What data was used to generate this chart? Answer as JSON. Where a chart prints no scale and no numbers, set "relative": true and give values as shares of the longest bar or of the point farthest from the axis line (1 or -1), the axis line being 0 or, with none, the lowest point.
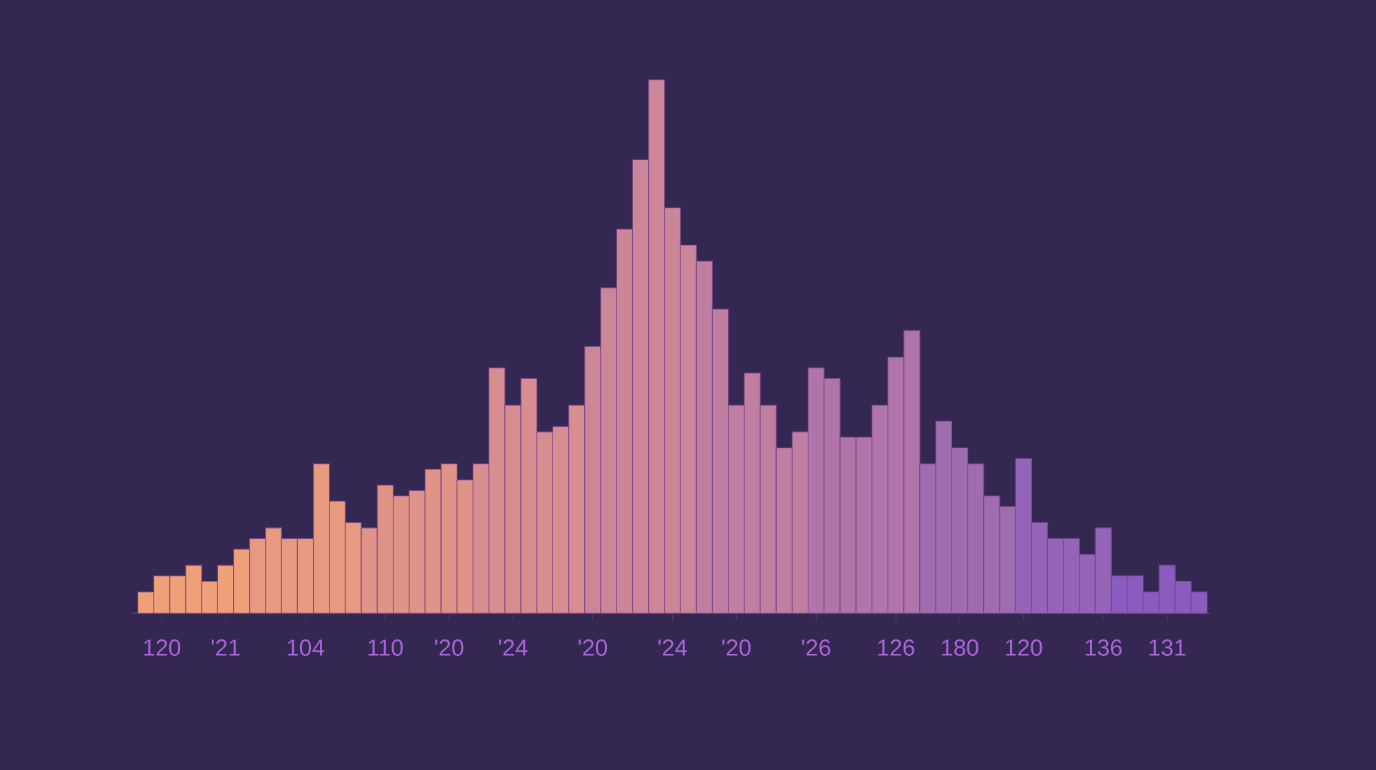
{
  "chart_data": {
    "type": "bar",
    "relative": true,
    "categories": [
      null,
      "120",
      null,
      null,
      null,
      "'21",
      null,
      null,
      null,
      null,
      "104",
      null,
      null,
      null,
      null,
      "110",
      null,
      null,
      null,
      "'20",
      null,
      null,
      null,
      "'24",
      null,
      null,
      null,
      null,
      "'20",
      null,
      null,
      null,
      null,
      "'24",
      null,
      null,
      null,
      "'20",
      null,
      null,
      null,
      null,
      "'26",
      null,
      null,
      null,
      null,
      "126",
      null,
      null,
      null,
      "180",
      null,
      null,
      null,
      "120",
      null,
      null,
      null,
      null,
      "136",
      null,
      null,
      null,
      "131",
      null,
      null
    ],
    "values": [
      0.04,
      0.07,
      0.07,
      0.09,
      0.06,
      0.09,
      0.12,
      0.14,
      0.16,
      0.14,
      0.14,
      0.28,
      0.21,
      0.17,
      0.16,
      0.24,
      0.22,
      0.23,
      0.27,
      0.28,
      0.25,
      0.28,
      0.46,
      0.39,
      0.44,
      0.34,
      0.35,
      0.39,
      0.5,
      0.61,
      0.72,
      0.85,
      1,
      0.76,
      0.69,
      0.66,
      0.57,
      0.39,
      0.45,
      0.39,
      0.31,
      0.34,
      0.46,
      0.44,
      0.33,
      0.33,
      0.39,
      0.48,
      0.53,
      0.28,
      0.36,
      0.31,
      0.28,
      0.22,
      0.2,
      0.29,
      0.17,
      0.14,
      0.14,
      0.11,
      0.16,
      0.07,
      0.07,
      0.04,
      0.09,
      0.06,
      0.04
    ],
    "colors": [
      "#f0a078",
      "#f0a078",
      "#f0a078",
      "#f0a078",
      "#f0a078",
      "#f0a078",
      "#f0a078",
      "#e89a80",
      "#e89a80",
      "#e89a80",
      "#e89a80",
      "#e89a80",
      "#e89a80",
      "#e89a80",
      "#e09488",
      "#e09488",
      "#e09488",
      "#e09488",
      "#e09488",
      "#e09488",
      "#e09488",
      "#d88e90",
      "#d88e90",
      "#d88e90",
      "#d88e90",
      "#d88e90",
      "#d88e90",
      "#d88e90",
      "#cc8698",
      "#cc8698",
      "#cc8698",
      "#cc8698",
      "#cc8698",
      "#cc8698",
      "#cc8698",
      "#c07ea0",
      "#c07ea0",
      "#c07ea0",
      "#c07ea0",
      "#c07ea0",
      "#c07ea0",
      "#c07ea0",
      "#b074a8",
      "#b074a8",
      "#b074a8",
      "#b074a8",
      "#b074a8",
      "#b074a8",
      "#b074a8",
      "#a06cb0",
      "#a06cb0",
      "#a06cb0",
      "#a06cb0",
      "#a06cb0",
      "#a06cb0",
      "#9464b8",
      "#9464b8",
      "#9464b8",
      "#9464b8",
      "#9464b8",
      "#9464b8",
      "#8a5cc0",
      "#8a5cc0",
      "#8a5cc0",
      "#8a5cc0",
      "#8a5cc0",
      "#8a5cc0"
    ]
  }
}
